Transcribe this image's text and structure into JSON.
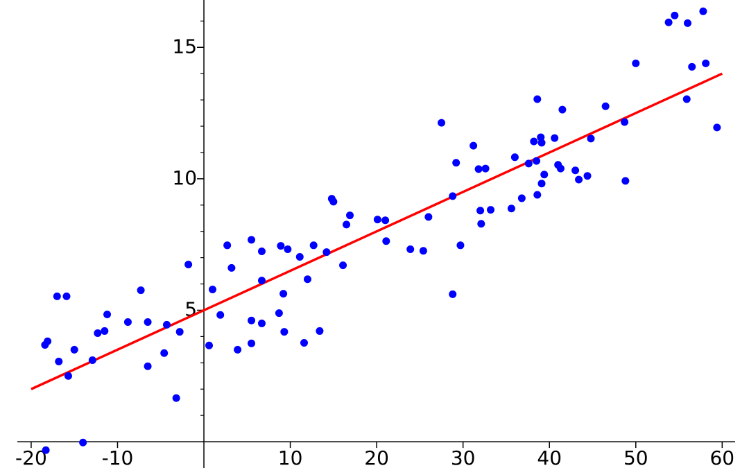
{
  "chart_data": {
    "type": "scatter",
    "x": [
      -18.4,
      -18.1,
      -17.0,
      -16.8,
      -15.9,
      -15.7,
      -15.0,
      -18.3,
      -14.0,
      -12.9,
      -12.3,
      -11.5,
      -11.2,
      -8.8,
      -7.3,
      -6.5,
      -6.5,
      -4.6,
      -4.3,
      -3.2,
      -2.8,
      -1.8,
      0.6,
      1.0,
      1.9,
      2.7,
      3.2,
      3.9,
      5.5,
      5.5,
      5.5,
      6.7,
      6.7,
      6.7,
      8.7,
      8.9,
      9.2,
      9.3,
      9.7,
      11.1,
      11.6,
      12.0,
      12.7,
      13.4,
      14.2,
      14.8,
      15.0,
      16.1,
      16.5,
      16.9,
      20.1,
      21.0,
      21.1,
      23.9,
      25.4,
      26.0,
      27.5,
      28.8,
      28.8,
      29.2,
      29.7,
      31.2,
      31.8,
      32.0,
      32.1,
      32.6,
      33.2,
      35.6,
      36.0,
      36.8,
      37.6,
      38.2,
      38.5,
      38.6,
      38.6,
      39.0,
      39.1,
      39.1,
      39.4,
      40.6,
      41.0,
      41.3,
      41.5,
      43.0,
      43.4,
      44.4,
      44.8,
      46.5,
      48.7,
      48.8,
      50.0,
      53.8,
      54.5,
      56.0,
      55.9,
      56.5,
      57.8,
      58.1,
      59.4
    ],
    "y": [
      3.68,
      3.82,
      5.53,
      3.05,
      5.53,
      2.5,
      3.5,
      -0.32,
      -0.03,
      3.1,
      4.13,
      4.21,
      4.84,
      4.55,
      5.76,
      4.55,
      2.87,
      3.37,
      4.45,
      1.66,
      4.18,
      6.74,
      3.66,
      5.79,
      4.82,
      7.47,
      6.61,
      3.5,
      7.68,
      4.61,
      3.74,
      7.24,
      6.13,
      4.5,
      4.89,
      7.45,
      5.63,
      4.18,
      7.32,
      7.03,
      3.76,
      6.18,
      7.47,
      4.21,
      7.21,
      9.24,
      9.13,
      6.71,
      8.26,
      8.61,
      8.45,
      8.42,
      7.63,
      7.32,
      7.26,
      8.55,
      12.13,
      9.34,
      5.61,
      10.61,
      7.47,
      11.26,
      10.37,
      8.79,
      8.29,
      10.39,
      8.82,
      8.87,
      10.82,
      9.26,
      10.58,
      11.42,
      10.68,
      13.03,
      9.39,
      11.58,
      11.37,
      9.82,
      10.16,
      11.55,
      10.53,
      10.39,
      12.63,
      10.32,
      9.97,
      10.11,
      11.53,
      12.76,
      12.16,
      9.92,
      14.39,
      15.95,
      16.21,
      15.92,
      13.03,
      14.26,
      16.37,
      14.39,
      11.95
    ],
    "color": "#0000ff",
    "fit_line": {
      "x": [
        -20,
        60
      ],
      "y": [
        2,
        14
      ],
      "color": "#ff0000"
    },
    "xlim": [
      -21.6,
      61.5
    ],
    "ylim": [
      -1,
      16.8
    ],
    "xticks": [
      -20,
      -10,
      10,
      20,
      30,
      40,
      50,
      60
    ],
    "yticks": [
      5,
      10,
      15
    ],
    "y_minor_ticks": [
      1,
      2,
      3,
      4,
      6,
      7,
      8,
      9,
      11,
      12,
      13,
      14,
      16
    ]
  }
}
